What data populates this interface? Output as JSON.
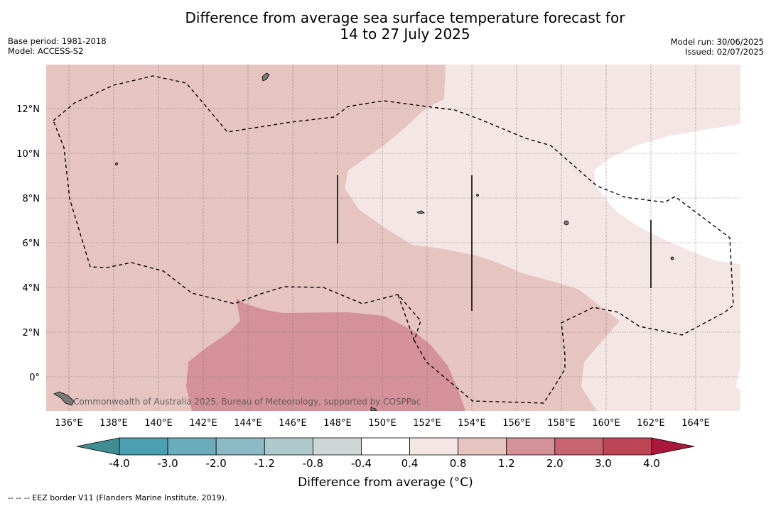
{
  "title_line1": "Difference from average sea surface temperature forecast for",
  "title_line2": "14 to 27 July 2025",
  "base_period": "Base period: 1981-2018",
  "model": "Model: ACCESS-S2",
  "model_run": "Model run: 30/06/2025",
  "issued": "Issued: 02/07/2025",
  "credit": "Commonwealth of Australia 2025, Bureau of Meteorology, supported by COSPPac",
  "colorbar_title": "Difference from average (°C)",
  "footnote": "-- -- -- EEZ border V11 (Flanders Marine Institute, 2019).",
  "map": {
    "lon_labels": [
      "136°E",
      "138°E",
      "140°E",
      "142°E",
      "144°E",
      "146°E",
      "148°E",
      "150°E",
      "152°E",
      "154°E",
      "156°E",
      "158°E",
      "160°E",
      "162°E",
      "164°E"
    ],
    "lat_labels": [
      "12°N",
      "10°N",
      "8°N",
      "6°N",
      "4°N",
      "2°N",
      "0°"
    ]
  },
  "colorbar": {
    "ticks": [
      "-4.0",
      "-3.0",
      "-2.0",
      "-1.2",
      "-0.8",
      "-0.4",
      "0.4",
      "0.8",
      "1.2",
      "2.0",
      "3.0",
      "4.0"
    ],
    "colors": [
      "#4a9fb1",
      "#6aacbc",
      "#8bbac4",
      "#aec9cc",
      "#d0d5d6",
      "#ffffff",
      "#f4e6e4",
      "#e6c5c1",
      "#d4919a",
      "#c86370",
      "#bd4556"
    ],
    "under_color": "#3f8c93",
    "over_color": "#a9183a"
  }
}
